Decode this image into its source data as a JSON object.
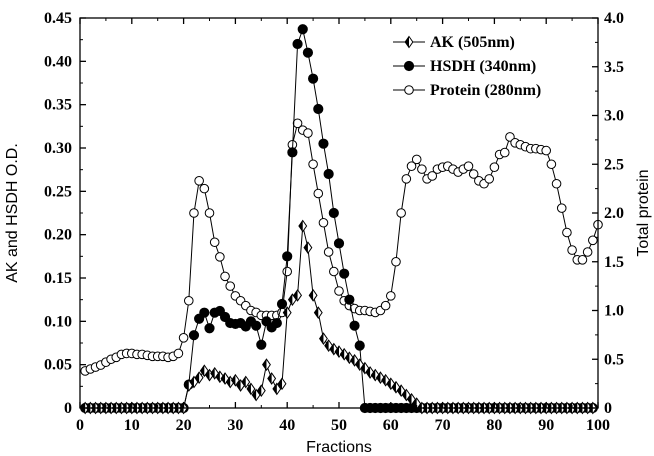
{
  "chart_data": {
    "type": "line",
    "xlabel": "Fractions",
    "ylabel_left": "AK and HSDH O.D.",
    "ylabel_right": "Total protein",
    "xlim": [
      0,
      100
    ],
    "ylim_left": [
      0,
      0.45
    ],
    "ylim_right": [
      0,
      4.0
    ],
    "x_ticks": [
      "0",
      "10",
      "20",
      "30",
      "40",
      "50",
      "60",
      "70",
      "80",
      "90",
      "100"
    ],
    "y_left_ticks": [
      "0",
      "0.05",
      "0.10",
      "0.15",
      "0.20",
      "0.25",
      "0.30",
      "0.35",
      "0.40",
      "0.45"
    ],
    "y_right_ticks": [
      "0",
      "0.5",
      "1.0",
      "1.5",
      "2.0",
      "2.5",
      "3.0",
      "3.5",
      "4.0"
    ],
    "legend_position": "top-right",
    "series": [
      {
        "name": "AK (505nm)",
        "axis": "left",
        "marker": "half-diamond",
        "points": [
          [
            1,
            0
          ],
          [
            2,
            0
          ],
          [
            3,
            0
          ],
          [
            4,
            0
          ],
          [
            5,
            0
          ],
          [
            6,
            0
          ],
          [
            7,
            0
          ],
          [
            8,
            0
          ],
          [
            9,
            0
          ],
          [
            10,
            0
          ],
          [
            11,
            0
          ],
          [
            12,
            0
          ],
          [
            13,
            0
          ],
          [
            14,
            0
          ],
          [
            15,
            0
          ],
          [
            16,
            0
          ],
          [
            17,
            0
          ],
          [
            18,
            0
          ],
          [
            19,
            0
          ],
          [
            20,
            0
          ],
          [
            21,
            0.026
          ],
          [
            22,
            0.03
          ],
          [
            23,
            0.035
          ],
          [
            24,
            0.043
          ],
          [
            25,
            0.038
          ],
          [
            26,
            0.04
          ],
          [
            27,
            0.036
          ],
          [
            28,
            0.034
          ],
          [
            29,
            0.03
          ],
          [
            30,
            0.032
          ],
          [
            31,
            0.026
          ],
          [
            32,
            0.03
          ],
          [
            33,
            0.022
          ],
          [
            34,
            0.015
          ],
          [
            35,
            0.02
          ],
          [
            36,
            0.05
          ],
          [
            37,
            0.034
          ],
          [
            38,
            0.022
          ],
          [
            39,
            0.028
          ],
          [
            40,
            0.11
          ],
          [
            41,
            0.125
          ],
          [
            42,
            0.13
          ],
          [
            43,
            0.21
          ],
          [
            44,
            0.185
          ],
          [
            45,
            0.13
          ],
          [
            46,
            0.11
          ],
          [
            47,
            0.08
          ],
          [
            48,
            0.072
          ],
          [
            49,
            0.068
          ],
          [
            50,
            0.065
          ],
          [
            51,
            0.062
          ],
          [
            52,
            0.058
          ],
          [
            53,
            0.055
          ],
          [
            54,
            0.05
          ],
          [
            55,
            0.046
          ],
          [
            56,
            0.041
          ],
          [
            57,
            0.038
          ],
          [
            58,
            0.035
          ],
          [
            59,
            0.032
          ],
          [
            60,
            0.028
          ],
          [
            61,
            0.024
          ],
          [
            62,
            0.02
          ],
          [
            63,
            0.015
          ],
          [
            64,
            0.01
          ],
          [
            65,
            0.005
          ],
          [
            66,
            0
          ],
          [
            67,
            0
          ],
          [
            68,
            0
          ],
          [
            69,
            0
          ],
          [
            70,
            0
          ],
          [
            71,
            0
          ],
          [
            72,
            0
          ],
          [
            73,
            0
          ],
          [
            74,
            0
          ],
          [
            75,
            0
          ],
          [
            76,
            0
          ],
          [
            77,
            0
          ],
          [
            78,
            0
          ],
          [
            79,
            0
          ],
          [
            80,
            0
          ],
          [
            81,
            0
          ],
          [
            82,
            0
          ],
          [
            83,
            0
          ],
          [
            84,
            0
          ],
          [
            85,
            0
          ],
          [
            86,
            0
          ],
          [
            87,
            0
          ],
          [
            88,
            0
          ],
          [
            89,
            0
          ],
          [
            90,
            0
          ],
          [
            91,
            0
          ],
          [
            92,
            0
          ],
          [
            93,
            0
          ],
          [
            94,
            0
          ],
          [
            95,
            0
          ],
          [
            96,
            0
          ],
          [
            97,
            0
          ],
          [
            98,
            0
          ],
          [
            99,
            0
          ]
        ]
      },
      {
        "name": "HSDH (340nm)",
        "axis": "left",
        "marker": "filled-circle",
        "points": [
          [
            1,
            0
          ],
          [
            2,
            0
          ],
          [
            3,
            0
          ],
          [
            4,
            0
          ],
          [
            5,
            0
          ],
          [
            6,
            0
          ],
          [
            7,
            0
          ],
          [
            8,
            0
          ],
          [
            9,
            0
          ],
          [
            10,
            0
          ],
          [
            11,
            0
          ],
          [
            12,
            0
          ],
          [
            13,
            0
          ],
          [
            14,
            0
          ],
          [
            15,
            0
          ],
          [
            16,
            0
          ],
          [
            17,
            0
          ],
          [
            18,
            0
          ],
          [
            19,
            0
          ],
          [
            20,
            0
          ],
          [
            21,
            0.027
          ],
          [
            22,
            0.084
          ],
          [
            23,
            0.103
          ],
          [
            24,
            0.11
          ],
          [
            25,
            0.092
          ],
          [
            26,
            0.11
          ],
          [
            27,
            0.112
          ],
          [
            28,
            0.105
          ],
          [
            29,
            0.098
          ],
          [
            30,
            0.097
          ],
          [
            31,
            0.098
          ],
          [
            32,
            0.094
          ],
          [
            33,
            0.1
          ],
          [
            34,
            0.095
          ],
          [
            35,
            0.073
          ],
          [
            36,
            0.1
          ],
          [
            37,
            0.093
          ],
          [
            38,
            0.098
          ],
          [
            39,
            0.12
          ],
          [
            40,
            0.175
          ],
          [
            41,
            0.295
          ],
          [
            42,
            0.42
          ],
          [
            43,
            0.437
          ],
          [
            44,
            0.41
          ],
          [
            45,
            0.38
          ],
          [
            46,
            0.345
          ],
          [
            47,
            0.305
          ],
          [
            48,
            0.27
          ],
          [
            49,
            0.225
          ],
          [
            50,
            0.19
          ],
          [
            51,
            0.155
          ],
          [
            52,
            0.125
          ],
          [
            53,
            0.095
          ],
          [
            54,
            0.072
          ],
          [
            55,
            0.0
          ],
          [
            56,
            0
          ],
          [
            57,
            0
          ],
          [
            58,
            0
          ],
          [
            59,
            0
          ],
          [
            60,
            0
          ],
          [
            61,
            0
          ],
          [
            62,
            0
          ],
          [
            63,
            0
          ],
          [
            64,
            0
          ],
          [
            65,
            0
          ],
          [
            66,
            0
          ],
          [
            67,
            0
          ],
          [
            68,
            0
          ],
          [
            69,
            0
          ],
          [
            70,
            0
          ],
          [
            71,
            0
          ],
          [
            72,
            0
          ],
          [
            73,
            0
          ],
          [
            74,
            0
          ],
          [
            75,
            0
          ],
          [
            76,
            0
          ],
          [
            77,
            0
          ],
          [
            78,
            0
          ],
          [
            79,
            0
          ],
          [
            80,
            0
          ],
          [
            81,
            0
          ],
          [
            82,
            0
          ],
          [
            83,
            0
          ],
          [
            84,
            0
          ],
          [
            85,
            0
          ],
          [
            86,
            0
          ],
          [
            87,
            0
          ],
          [
            88,
            0
          ],
          [
            89,
            0
          ],
          [
            90,
            0
          ],
          [
            91,
            0
          ],
          [
            92,
            0
          ],
          [
            93,
            0
          ],
          [
            94,
            0
          ],
          [
            95,
            0
          ],
          [
            96,
            0
          ],
          [
            97,
            0
          ],
          [
            98,
            0
          ],
          [
            99,
            0
          ]
        ]
      },
      {
        "name": "Protein (280nm)",
        "axis": "right",
        "marker": "open-circle",
        "points": [
          [
            1,
            0.38
          ],
          [
            2,
            0.4
          ],
          [
            3,
            0.42
          ],
          [
            4,
            0.44
          ],
          [
            5,
            0.47
          ],
          [
            6,
            0.5
          ],
          [
            7,
            0.52
          ],
          [
            8,
            0.55
          ],
          [
            9,
            0.56
          ],
          [
            10,
            0.56
          ],
          [
            11,
            0.55
          ],
          [
            12,
            0.55
          ],
          [
            13,
            0.54
          ],
          [
            14,
            0.53
          ],
          [
            15,
            0.53
          ],
          [
            16,
            0.53
          ],
          [
            17,
            0.52
          ],
          [
            18,
            0.53
          ],
          [
            19,
            0.56
          ],
          [
            20,
            0.72
          ],
          [
            21,
            1.1
          ],
          [
            22,
            2.0
          ],
          [
            23,
            2.33
          ],
          [
            24,
            2.25
          ],
          [
            25,
            2.0
          ],
          [
            26,
            1.7
          ],
          [
            27,
            1.55
          ],
          [
            28,
            1.35
          ],
          [
            29,
            1.25
          ],
          [
            30,
            1.15
          ],
          [
            31,
            1.1
          ],
          [
            32,
            1.05
          ],
          [
            33,
            1.0
          ],
          [
            34,
            0.98
          ],
          [
            35,
            0.95
          ],
          [
            36,
            0.95
          ],
          [
            37,
            0.95
          ],
          [
            38,
            0.95
          ],
          [
            39,
            0.98
          ],
          [
            40,
            1.4
          ],
          [
            41,
            2.7
          ],
          [
            42,
            2.92
          ],
          [
            43,
            2.85
          ],
          [
            44,
            2.82
          ],
          [
            45,
            2.5
          ],
          [
            46,
            2.2
          ],
          [
            47,
            1.9
          ],
          [
            48,
            1.6
          ],
          [
            49,
            1.4
          ],
          [
            50,
            1.2
          ],
          [
            51,
            1.1
          ],
          [
            52,
            1.05
          ],
          [
            53,
            1.02
          ],
          [
            54,
            1.0
          ],
          [
            55,
            1.0
          ],
          [
            56,
            0.99
          ],
          [
            57,
            0.98
          ],
          [
            58,
            1.0
          ],
          [
            59,
            1.05
          ],
          [
            60,
            1.15
          ],
          [
            61,
            1.5
          ],
          [
            62,
            2.0
          ],
          [
            63,
            2.35
          ],
          [
            64,
            2.48
          ],
          [
            65,
            2.55
          ],
          [
            66,
            2.45
          ],
          [
            67,
            2.35
          ],
          [
            68,
            2.38
          ],
          [
            69,
            2.45
          ],
          [
            70,
            2.47
          ],
          [
            71,
            2.48
          ],
          [
            72,
            2.45
          ],
          [
            73,
            2.42
          ],
          [
            74,
            2.45
          ],
          [
            75,
            2.48
          ],
          [
            76,
            2.4
          ],
          [
            77,
            2.33
          ],
          [
            78,
            2.3
          ],
          [
            79,
            2.35
          ],
          [
            80,
            2.47
          ],
          [
            81,
            2.6
          ],
          [
            82,
            2.62
          ],
          [
            83,
            2.78
          ],
          [
            84,
            2.72
          ],
          [
            85,
            2.7
          ],
          [
            86,
            2.68
          ],
          [
            87,
            2.66
          ],
          [
            88,
            2.66
          ],
          [
            89,
            2.65
          ],
          [
            90,
            2.64
          ],
          [
            91,
            2.5
          ],
          [
            92,
            2.3
          ],
          [
            93,
            2.05
          ],
          [
            94,
            1.8
          ],
          [
            95,
            1.62
          ],
          [
            96,
            1.52
          ],
          [
            97,
            1.52
          ],
          [
            98,
            1.6
          ],
          [
            99,
            1.72
          ],
          [
            100,
            1.88
          ]
        ]
      }
    ]
  }
}
